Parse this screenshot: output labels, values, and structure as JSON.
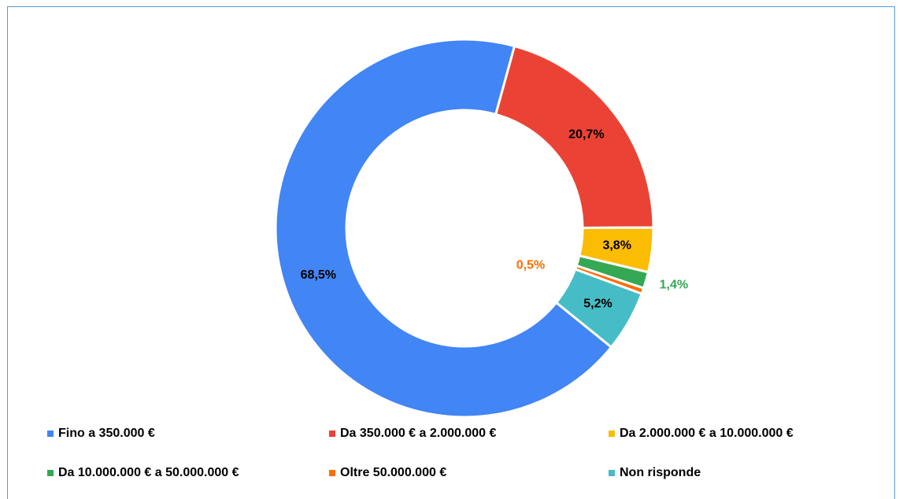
{
  "chart_data": {
    "type": "pie",
    "categories": [
      "Fino a 350.000 €",
      "Da 350.000 € a 2.000.000 €",
      "Da 2.000.000 € a 10.000.000 €",
      "Da 10.000.000 € a 50.000.000 €",
      "Oltre 50.000.000 €",
      "Non risponde"
    ],
    "values": [
      68.5,
      20.7,
      3.8,
      1.4,
      0.5,
      5.2
    ],
    "value_labels": [
      "68,5%",
      "20,7%",
      "3,8%",
      "1,4%",
      "0,5%",
      "5,2%"
    ],
    "colors": [
      "#4285f4",
      "#ea4335",
      "#fbbc04",
      "#34a853",
      "#ff6d01",
      "#46bdc6"
    ],
    "donut": true,
    "legend": "bottom"
  }
}
